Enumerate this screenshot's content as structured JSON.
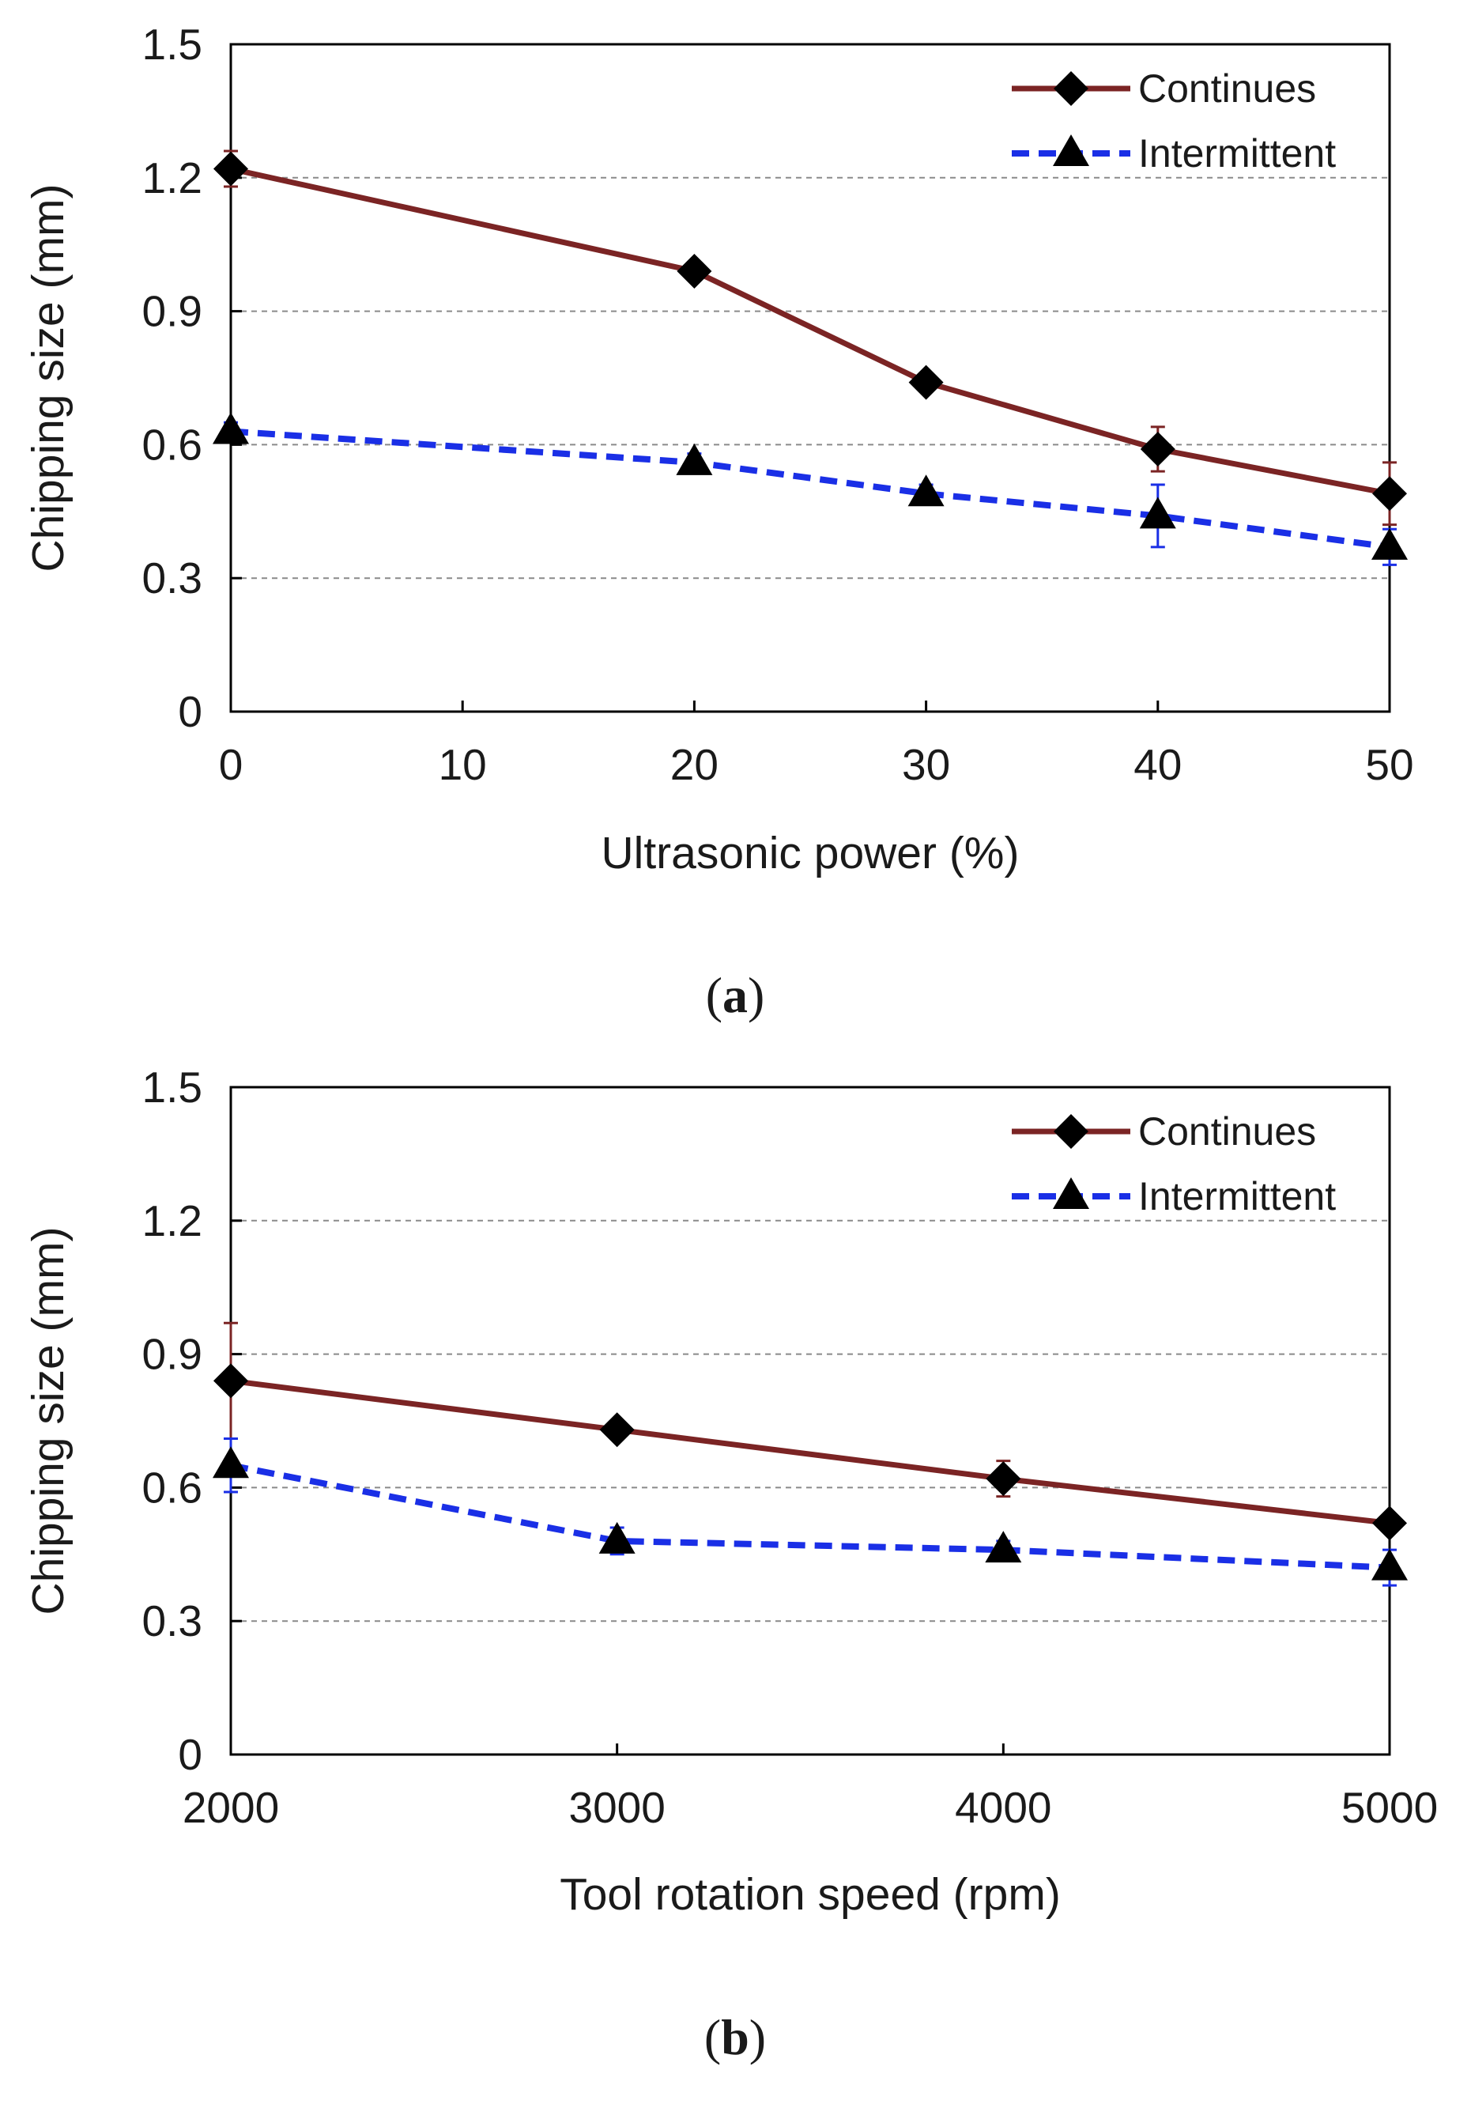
{
  "chart_data": [
    {
      "type": "line",
      "panel": "a",
      "caption": "a",
      "xlabel": "Ultrasonic power (%)",
      "ylabel": "Chipping size (mm)",
      "xlim": [
        0,
        50
      ],
      "ylim": [
        0,
        1.5
      ],
      "xticks": [
        "0",
        "10",
        "20",
        "30",
        "40",
        "50"
      ],
      "xtick_values": [
        0,
        10,
        20,
        30,
        40,
        50
      ],
      "yticks": [
        "0",
        "0.3",
        "0.6",
        "0.9",
        "1.2",
        "1.5"
      ],
      "ytick_values": [
        0,
        0.3,
        0.6,
        0.9,
        1.2,
        1.5
      ],
      "grid": "horizontal dashed",
      "legend_position": "top-right",
      "series": [
        {
          "name": "Continues",
          "color": "#7b2424",
          "line_style": "solid",
          "marker": "diamond",
          "x": [
            0,
            20,
            30,
            40,
            50
          ],
          "y": [
            1.22,
            0.99,
            0.74,
            0.59,
            0.49
          ],
          "error": [
            0.04,
            0.02,
            0.02,
            0.05,
            0.07
          ]
        },
        {
          "name": "Intermittent",
          "color": "#1a2fe6",
          "line_style": "dashed",
          "marker": "triangle",
          "x": [
            0,
            20,
            30,
            40,
            50
          ],
          "y": [
            0.63,
            0.56,
            0.49,
            0.44,
            0.37
          ],
          "error": [
            0.02,
            0.02,
            0.02,
            0.07,
            0.04
          ]
        }
      ]
    },
    {
      "type": "line",
      "panel": "b",
      "caption": "b",
      "xlabel": "Tool rotation speed (rpm)",
      "ylabel": "Chipping size (mm)",
      "xlim": [
        2000,
        5000
      ],
      "ylim": [
        0,
        1.5
      ],
      "xticks": [
        "2000",
        "3000",
        "4000",
        "5000"
      ],
      "xtick_values": [
        2000,
        3000,
        4000,
        5000
      ],
      "yticks": [
        "0",
        "0.3",
        "0.6",
        "0.9",
        "1.2",
        "1.5"
      ],
      "ytick_values": [
        0,
        0.3,
        0.6,
        0.9,
        1.2,
        1.5
      ],
      "grid": "horizontal dashed",
      "legend_position": "top-right",
      "series": [
        {
          "name": "Continues",
          "color": "#7b2424",
          "line_style": "solid",
          "marker": "diamond",
          "x": [
            2000,
            3000,
            4000,
            5000
          ],
          "y": [
            0.84,
            0.73,
            0.62,
            0.52
          ],
          "error": [
            0.13,
            0.02,
            0.04,
            0.02
          ]
        },
        {
          "name": "Intermittent",
          "color": "#1a2fe6",
          "line_style": "dashed",
          "marker": "triangle",
          "x": [
            2000,
            3000,
            4000,
            5000
          ],
          "y": [
            0.65,
            0.48,
            0.46,
            0.42
          ],
          "error": [
            0.06,
            0.03,
            0.02,
            0.04
          ]
        }
      ]
    }
  ]
}
